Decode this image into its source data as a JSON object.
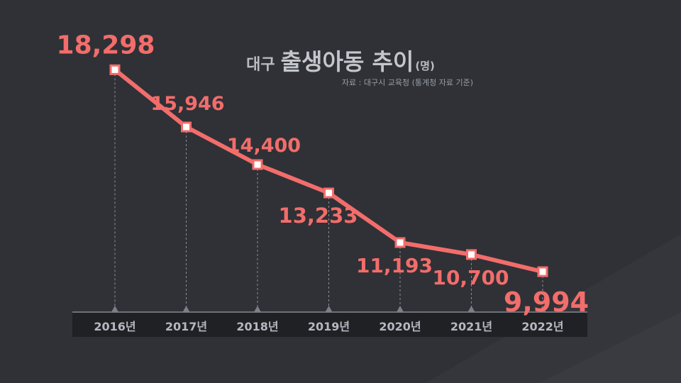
{
  "title": {
    "prefix": "대구",
    "main": "출생아동 추이",
    "unit": "(명)"
  },
  "source": "자료 : 대구시 교육청 (통계청 자료 기준)",
  "colors": {
    "background": "#2f3136",
    "line": "#f26d6b",
    "label": "#f26d6b",
    "marker_fill": "#ffffff",
    "axis_band": "#1f2125",
    "axis_text": "#b5b8bf"
  },
  "chart_data": {
    "type": "line",
    "categories": [
      "2016년",
      "2017년",
      "2018년",
      "2019년",
      "2020년",
      "2021년",
      "2022년"
    ],
    "values": [
      18298,
      15946,
      14400,
      13233,
      11193,
      10700,
      9994
    ],
    "value_labels": [
      "18,298",
      "15,946",
      "14,400",
      "13,233",
      "11,193",
      "10,700",
      "9,994"
    ],
    "ylim": [
      6000,
      20000
    ],
    "grid": false,
    "drop_lines": true
  }
}
